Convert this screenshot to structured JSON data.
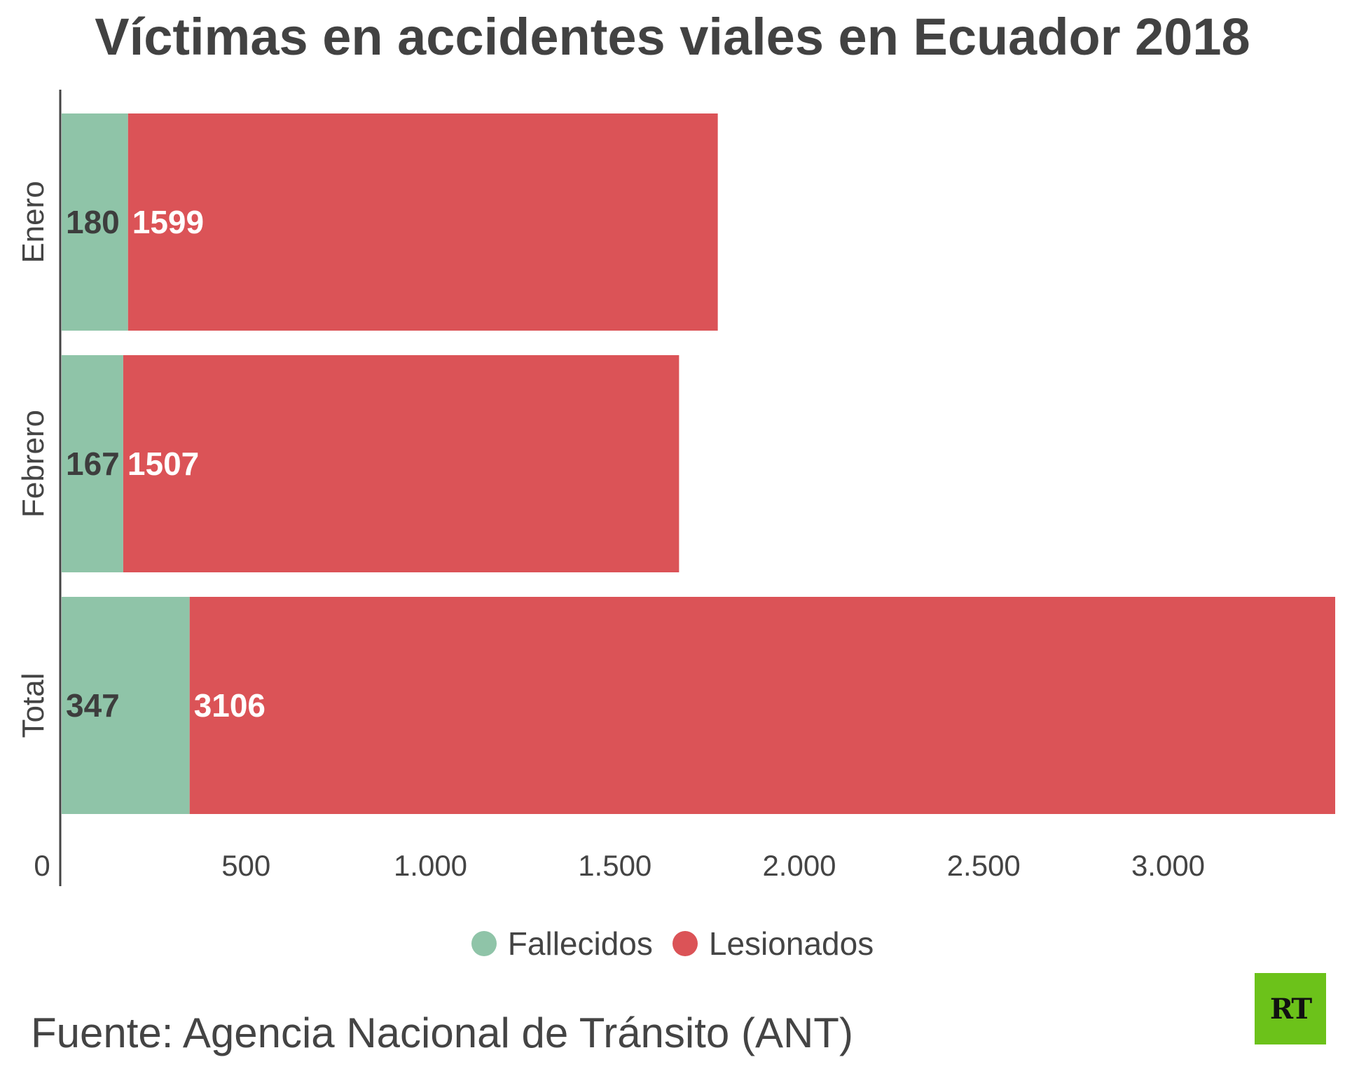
{
  "chart_data": {
    "type": "bar",
    "orientation": "horizontal",
    "stacked": true,
    "title": "Víctimas en accidentes viales en Ecuador 2018",
    "categories": [
      "Enero",
      "Febrero",
      "Total"
    ],
    "series": [
      {
        "name": "Fallecidos",
        "values": [
          180,
          167,
          347
        ],
        "color": "#8fc4a8"
      },
      {
        "name": "Lesionados",
        "values": [
          1599,
          1507,
          3106
        ],
        "color": "#db5357"
      }
    ],
    "xlim": [
      0,
      3453
    ],
    "x_ticks": [
      0,
      500,
      1000,
      1500,
      2000,
      2500,
      3000
    ],
    "x_tick_labels": [
      "0",
      "500",
      "1.000",
      "1.500",
      "2.000",
      "2.500",
      "3.000"
    ],
    "legend_position": "bottom-center",
    "grid": false
  },
  "footer": {
    "source": "Fuente: Agencia Nacional de Tránsito (ANT)",
    "logo_text": "RT",
    "logo_color": "#6cc21a"
  }
}
